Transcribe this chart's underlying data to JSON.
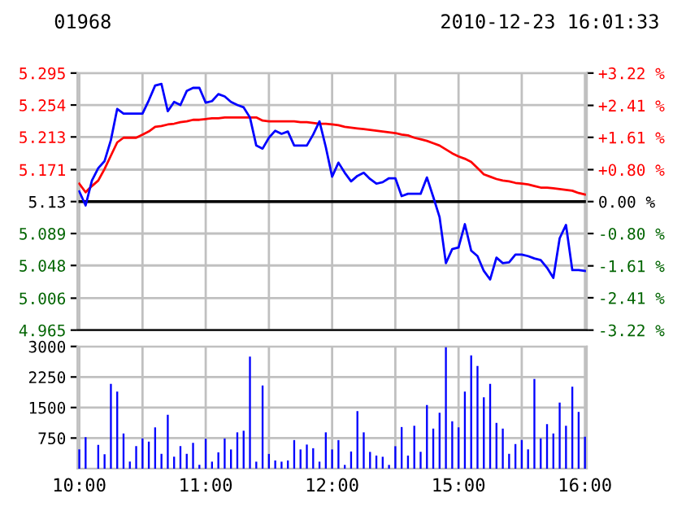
{
  "chart_data": [
    {
      "type": "line",
      "title": "01968",
      "subtitle": "2010-12-23 16:01:33",
      "categories": [
        null,
        null,
        null,
        null,
        null,
        null,
        null,
        null,
        null,
        null,
        null,
        null,
        null,
        null,
        null,
        null,
        null,
        null,
        null,
        null,
        null,
        null,
        null,
        null,
        null,
        null,
        null,
        null,
        null,
        null,
        null,
        null,
        null,
        null,
        null,
        null,
        null,
        null,
        null,
        null,
        null,
        null,
        null,
        null,
        null,
        null,
        null,
        null,
        null,
        null,
        null,
        null,
        null,
        null,
        null,
        null,
        null,
        null,
        null,
        null,
        null,
        null,
        null,
        null,
        null,
        null,
        null,
        null,
        null,
        null,
        null,
        null,
        null,
        null,
        null,
        null,
        null,
        null,
        null,
        null,
        null
      ],
      "ylim": [
        4.965,
        5.295
      ],
      "yticks": [
        4.965,
        5.006,
        5.048,
        5.089,
        5.13,
        5.171,
        5.213,
        5.254,
        5.295
      ],
      "y2lim": [
        -3.22,
        3.22
      ],
      "y2ticks": [
        {
          "value": -3.22,
          "label": "-3.22 %"
        },
        {
          "value": -2.41,
          "label": "-2.41 %"
        },
        {
          "value": -1.61,
          "label": "-1.61 %"
        },
        {
          "value": -0.8,
          "label": "-0.80 %"
        },
        {
          "value": 0,
          "label": "0.00 %"
        },
        {
          "value": 0.8,
          "label": "+0.80 %"
        },
        {
          "value": 1.61,
          "label": "+1.61 %"
        },
        {
          "value": 2.41,
          "label": "+2.41 %"
        },
        {
          "value": 3.22,
          "label": "+3.22 %"
        }
      ],
      "grid": true,
      "ref_lines": [
        {
          "axis": "y",
          "value": 5.13,
          "color": "#000000"
        }
      ],
      "series": [
        {
          "color": "#ff0000",
          "values": [
            5.153,
            5.142,
            5.15,
            5.157,
            5.172,
            5.189,
            5.206,
            5.212,
            5.212,
            5.212,
            5.216,
            5.22,
            5.226,
            5.227,
            5.229,
            5.23,
            5.232,
            5.233,
            5.235,
            5.235,
            5.236,
            5.237,
            5.237,
            5.238,
            5.238,
            5.238,
            5.238,
            5.238,
            5.238,
            5.234,
            5.233,
            5.233,
            5.233,
            5.233,
            5.233,
            5.232,
            5.232,
            5.231,
            5.23,
            5.23,
            5.229,
            5.228,
            5.226,
            5.225,
            5.224,
            5.223,
            5.222,
            5.221,
            5.22,
            5.219,
            5.218,
            5.216,
            5.215,
            5.212,
            5.21,
            5.208,
            5.205,
            5.202,
            5.197,
            5.192,
            5.188,
            5.185,
            5.181,
            5.173,
            5.165,
            5.162,
            5.159,
            5.157,
            5.156,
            5.154,
            5.153,
            5.152,
            5.15,
            5.148,
            5.148,
            5.147,
            5.146,
            5.145,
            5.144,
            5.141,
            5.139
          ]
        },
        {
          "color": "#0000ff",
          "values": [
            5.143,
            5.125,
            5.157,
            5.173,
            5.182,
            5.209,
            5.249,
            5.243,
            5.243,
            5.243,
            5.243,
            5.26,
            5.279,
            5.281,
            5.246,
            5.258,
            5.254,
            5.272,
            5.276,
            5.276,
            5.257,
            5.259,
            5.268,
            5.265,
            5.258,
            5.254,
            5.251,
            5.238,
            5.202,
            5.198,
            5.212,
            5.221,
            5.217,
            5.22,
            5.202,
            5.202,
            5.202,
            5.216,
            5.233,
            5.2,
            5.162,
            5.18,
            5.167,
            5.156,
            5.163,
            5.167,
            5.159,
            5.153,
            5.155,
            5.16,
            5.16,
            5.137,
            5.14,
            5.14,
            5.14,
            5.161,
            5.136,
            5.11,
            5.051,
            5.069,
            5.071,
            5.101,
            5.067,
            5.06,
            5.041,
            5.03,
            5.058,
            5.051,
            5.052,
            5.062,
            5.062,
            5.06,
            5.057,
            5.055,
            5.045,
            5.032,
            5.083,
            5.1,
            5.042,
            5.042,
            5.041
          ]
        }
      ]
    },
    {
      "type": "bar",
      "categories": [
        "10:00",
        null,
        null,
        null,
        null,
        null,
        null,
        null,
        null,
        null,
        null,
        null,
        null,
        null,
        null,
        null,
        null,
        null,
        null,
        null,
        "11:00",
        null,
        null,
        null,
        null,
        null,
        null,
        null,
        null,
        null,
        null,
        null,
        null,
        null,
        null,
        null,
        null,
        null,
        null,
        null,
        "12:00",
        null,
        null,
        null,
        null,
        null,
        null,
        null,
        null,
        null,
        null,
        null,
        null,
        null,
        null,
        null,
        null,
        null,
        null,
        null,
        "15:00",
        null,
        null,
        null,
        null,
        null,
        null,
        null,
        null,
        null,
        null,
        null,
        null,
        null,
        null,
        null,
        null,
        null,
        null,
        null,
        "16:00"
      ],
      "ylim": [
        0,
        3000
      ],
      "yticks": [
        750,
        1500,
        2250,
        3000
      ],
      "grid": true,
      "series": [
        {
          "color": "#0000ff",
          "values": [
            470,
            770,
            null,
            580,
            350,
            2080,
            1890,
            860,
            170,
            550,
            740,
            660,
            1010,
            360,
            1320,
            290,
            550,
            360,
            630,
            90,
            730,
            170,
            400,
            740,
            470,
            890,
            930,
            2750,
            170,
            2040,
            360,
            200,
            170,
            200,
            700,
            470,
            590,
            500,
            170,
            890,
            470,
            700,
            90,
            420,
            1410,
            890,
            410,
            320,
            290,
            90,
            550,
            1020,
            320,
            1050,
            410,
            1560,
            980,
            1370,
            2980,
            1160,
            1010,
            1890,
            2780,
            2520,
            1750,
            2080,
            1120,
            980,
            360,
            600,
            700,
            470,
            2200,
            740,
            1090,
            860,
            1620,
            1050,
            2010,
            1390,
            780
          ]
        }
      ]
    }
  ]
}
